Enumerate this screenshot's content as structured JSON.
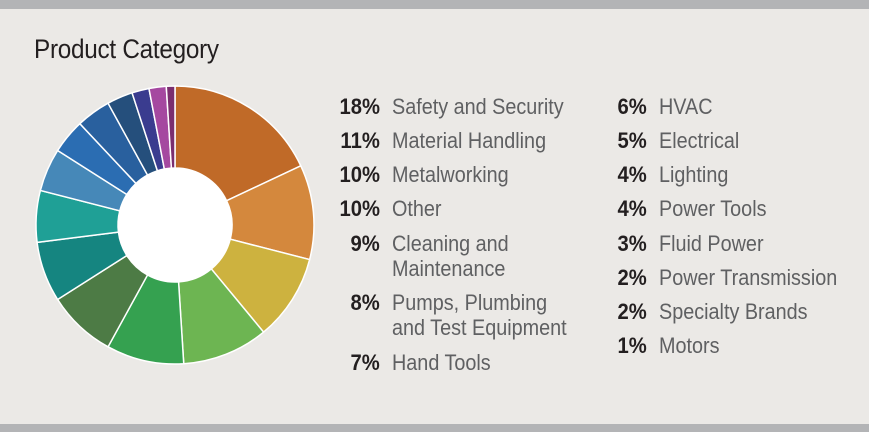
{
  "title": "Product Category",
  "chart_data": {
    "type": "pie",
    "title": "Product Category",
    "slices": [
      {
        "label": "Safety and Security",
        "pct_text": "18%",
        "value": 18,
        "color": "#c06a28"
      },
      {
        "label": "Material Handling",
        "pct_text": "11%",
        "value": 11,
        "color": "#d4883d"
      },
      {
        "label": "Metalworking",
        "pct_text": "10%",
        "value": 10,
        "color": "#cdb23f"
      },
      {
        "label": "Other",
        "pct_text": "10%",
        "value": 10,
        "color": "#6db552"
      },
      {
        "label": "Cleaning and\nMaintenance",
        "pct_text": "9%",
        "value": 9,
        "color": "#35a150"
      },
      {
        "label": "Pumps, Plumbing\nand Test Equipment",
        "pct_text": "8%",
        "value": 8,
        "color": "#4d7b45"
      },
      {
        "label": "Hand Tools",
        "pct_text": "7%",
        "value": 7,
        "color": "#158580"
      },
      {
        "label": "HVAC",
        "pct_text": "6%",
        "value": 6,
        "color": "#1fa096"
      },
      {
        "label": "Electrical",
        "pct_text": "5%",
        "value": 5,
        "color": "#4688b8"
      },
      {
        "label": "Lighting",
        "pct_text": "4%",
        "value": 4,
        "color": "#2b6db2"
      },
      {
        "label": "Power Tools",
        "pct_text": "4%",
        "value": 4,
        "color": "#29609e"
      },
      {
        "label": "Fluid Power",
        "pct_text": "3%",
        "value": 3,
        "color": "#254f7c"
      },
      {
        "label": "Power Transmission",
        "pct_text": "2%",
        "value": 2,
        "color": "#3a3c8f"
      },
      {
        "label": "Specialty Brands",
        "pct_text": "2%",
        "value": 2,
        "color": "#a548a0"
      },
      {
        "label": "Motors",
        "pct_text": "1%",
        "value": 1,
        "color": "#7a2e6f"
      }
    ]
  }
}
